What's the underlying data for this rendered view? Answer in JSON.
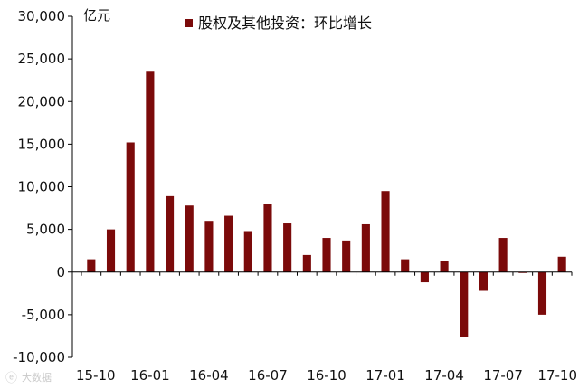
{
  "chart_data": {
    "type": "bar",
    "unit_label": "亿元",
    "legend": "股权及其他投资：环比增长",
    "ylim": [
      -10000,
      30000
    ],
    "yticks": [
      -10000,
      -5000,
      0,
      5000,
      10000,
      15000,
      20000,
      25000,
      30000
    ],
    "ytick_labels": [
      "-10,000",
      "-5,000",
      "0",
      "5,000",
      "10,000",
      "15,000",
      "20,000",
      "25,000",
      "30,000"
    ],
    "categories": [
      "15-10",
      "15-11",
      "15-12",
      "16-01",
      "16-02",
      "16-03",
      "16-04",
      "16-05",
      "16-06",
      "16-07",
      "16-08",
      "16-09",
      "16-10",
      "16-11",
      "16-12",
      "17-01",
      "17-02",
      "17-03",
      "17-04",
      "17-05",
      "17-06",
      "17-07",
      "17-08",
      "17-09",
      "17-10"
    ],
    "xtick_labels": [
      "15-10",
      "16-01",
      "16-04",
      "16-07",
      "16-10",
      "17-01",
      "17-04",
      "17-07",
      "17-10"
    ],
    "values": [
      1500,
      5000,
      15200,
      23500,
      8900,
      7800,
      6000,
      6600,
      4800,
      8000,
      5700,
      2000,
      4000,
      3700,
      5600,
      9500,
      1500,
      -1200,
      1300,
      -7600,
      -2200,
      4000,
      -100,
      -5000,
      1800
    ],
    "series_color": "#7b0a0a",
    "grid": false,
    "legend_position": "top-center"
  },
  "watermark": "大数据"
}
